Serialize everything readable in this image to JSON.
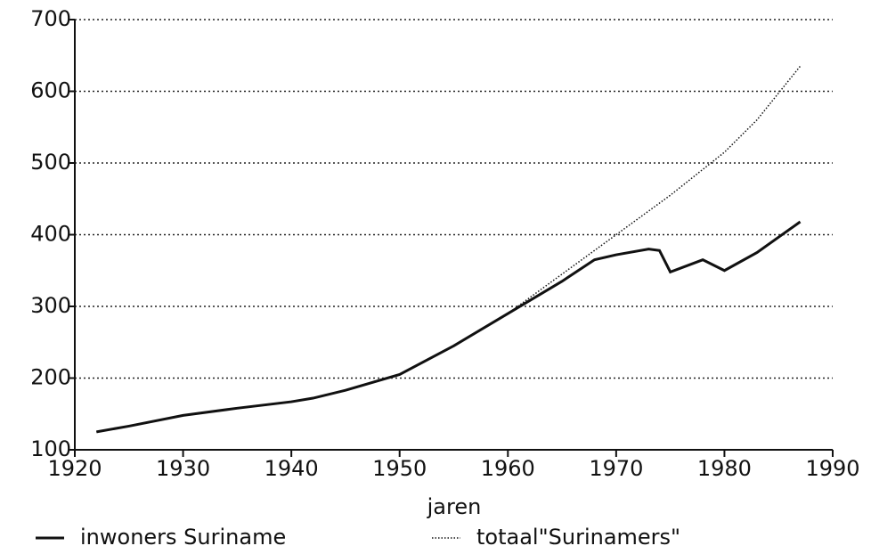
{
  "chart_data": {
    "type": "line",
    "x_label": "jaren",
    "x": [
      1922,
      1925,
      1930,
      1935,
      1940,
      1942,
      1945,
      1950,
      1955,
      1960,
      1965,
      1968,
      1970,
      1973,
      1974,
      1975,
      1978,
      1980,
      1983,
      1987
    ],
    "series": [
      {
        "name": "inwoners Suriname",
        "color": "#111111",
        "style": "solid",
        "values": [
          125,
          133,
          148,
          158,
          167,
          172,
          183,
          205,
          245,
          290,
          335,
          365,
          372,
          380,
          378,
          348,
          365,
          350,
          375,
          418
        ]
      },
      {
        "name": "totaal\"Surinamers\"",
        "color": "#111111",
        "style": "dotted",
        "values": [
          125,
          133,
          148,
          158,
          167,
          172,
          183,
          205,
          245,
          290,
          345,
          378,
          400,
          433,
          444,
          455,
          491,
          515,
          560,
          635
        ]
      }
    ],
    "xlim": [
      1920,
      1990
    ],
    "xticks": [
      1920,
      1930,
      1940,
      1950,
      1960,
      1970,
      1980,
      1990
    ],
    "ylim": [
      100,
      700
    ],
    "yticks": [
      100,
      200,
      300,
      400,
      500,
      600,
      700
    ],
    "grid": true,
    "legend": "bottom"
  }
}
